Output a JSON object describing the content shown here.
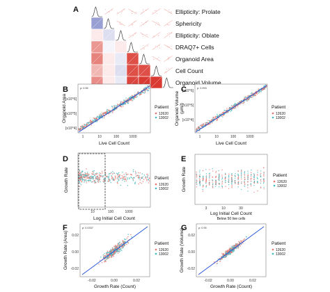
{
  "chart_data": [
    {
      "panel": "A",
      "type": "heatmap",
      "variables": [
        "Ellipticity: Prolate",
        "Sphericity",
        "Ellipticity: Oblate",
        "DRAQ7+ Cells",
        "Organoid Area",
        "Cell Count",
        "Organoid Volume"
      ],
      "lower_correlations": [
        {
          "row": 1,
          "col": 0,
          "value": -0.45
        },
        {
          "row": 2,
          "col": 0,
          "value": 0.1
        },
        {
          "row": 2,
          "col": 1,
          "value": -0.15
        },
        {
          "row": 3,
          "col": 0,
          "value": 0.5
        },
        {
          "row": 3,
          "col": 1,
          "value": -0.05
        },
        {
          "row": 3,
          "col": 2,
          "value": 0.1
        },
        {
          "row": 4,
          "col": 0,
          "value": 0.6
        },
        {
          "row": 4,
          "col": 1,
          "value": 0.1
        },
        {
          "row": 4,
          "col": 2,
          "value": -0.1
        },
        {
          "row": 4,
          "col": 3,
          "value": 0.85
        },
        {
          "row": 5,
          "col": 0,
          "value": 0.35
        },
        {
          "row": 5,
          "col": 1,
          "value": 0.1
        },
        {
          "row": 5,
          "col": 2,
          "value": -0.15
        },
        {
          "row": 5,
          "col": 3,
          "value": 0.85
        },
        {
          "row": 5,
          "col": 4,
          "value": 0.85
        },
        {
          "row": 6,
          "col": 0,
          "value": 0.55
        },
        {
          "row": 6,
          "col": 1,
          "value": 0.1
        },
        {
          "row": 6,
          "col": 2,
          "value": -0.1
        },
        {
          "row": 6,
          "col": 3,
          "value": 0.9
        },
        {
          "row": 6,
          "col": 4,
          "value": 0.95
        },
        {
          "row": 6,
          "col": 5,
          "value": 0.95
        }
      ]
    },
    {
      "panel": "B",
      "type": "scatter",
      "xlabel": "Live Cell Count",
      "ylabel": "Organoid Area",
      "xticks": [
        "1",
        "10",
        "100",
        "1000"
      ],
      "yticks": [
        "[x10^4]",
        "[x10^5]",
        "[x10^6]"
      ],
      "corr": "ρ: 0.96",
      "fit": {
        "x": [
          1,
          3000
        ],
        "y": [
          0.8,
          6.9
        ]
      },
      "legend_title": "Patient",
      "series": [
        {
          "name": "12620",
          "color": "#e8766f"
        },
        {
          "name": "13002",
          "color": "#3fb8be"
        }
      ]
    },
    {
      "panel": "C",
      "type": "scatter",
      "xlabel": "Live Cell Count",
      "ylabel": "Organoid Volume",
      "ylabel_unit": "(μm³)",
      "xticks": [
        "1",
        "10",
        "100",
        "1000"
      ],
      "yticks": [
        "[x10^6]",
        "[x10^5]",
        "[x10^4]"
      ],
      "corr": "ρ: 0.993",
      "legend_title": "Patient",
      "series": [
        {
          "name": "12620",
          "color": "#e8766f"
        },
        {
          "name": "13002",
          "color": "#3fb8be"
        }
      ]
    },
    {
      "panel": "D",
      "type": "scatter",
      "xlabel": "Log Initial Cell Count",
      "ylabel": "Growth Rate",
      "xticks": [
        "10",
        "100",
        "1000"
      ],
      "legend_title": "Patient",
      "series": [
        {
          "name": "12620",
          "color": "#e8766f"
        },
        {
          "name": "13002",
          "color": "#3fb8be"
        }
      ]
    },
    {
      "panel": "E",
      "type": "scatter",
      "xlabel": "Log Initial Cell Count",
      "ylabel": "Growth Rate",
      "xticks": [
        "3",
        "10",
        "30"
      ],
      "note": "Below 50 live cells",
      "legend_title": "Patient",
      "series": [
        {
          "name": "12620",
          "color": "#e8766f"
        },
        {
          "name": "13002",
          "color": "#3fb8be"
        }
      ]
    },
    {
      "panel": "F",
      "type": "scatter",
      "xlabel": "Growth Rate (Count)",
      "ylabel": "Growth Rate (Area)",
      "xticks": [
        "-0.02",
        "0.00",
        "0.02"
      ],
      "yticks": [
        "-0.02",
        "0.00",
        "0.02"
      ],
      "corr": "ρ: 0.0337",
      "legend_title": "Patient",
      "series": [
        {
          "name": "12620",
          "color": "#e8766f"
        },
        {
          "name": "13002",
          "color": "#3fb8be"
        }
      ]
    },
    {
      "panel": "G",
      "type": "scatter",
      "xlabel": "Growth Rate (Count)",
      "ylabel": "Growth Rate (Volume)",
      "xticks": [
        "-0.02",
        "0.00",
        "0.02"
      ],
      "yticks": [
        "-0.02",
        "0.00",
        "0.02"
      ],
      "corr": "ρ: 0.95",
      "legend_title": "Patient",
      "series": [
        {
          "name": "12620",
          "color": "#e8766f"
        },
        {
          "name": "13002",
          "color": "#3fb8be"
        }
      ]
    }
  ],
  "colors": {
    "red": "#e8766f",
    "cyan": "#3fb8be",
    "fit": "#1f4fd8",
    "neg": "#1b2a9e",
    "pos": "#d73027"
  }
}
